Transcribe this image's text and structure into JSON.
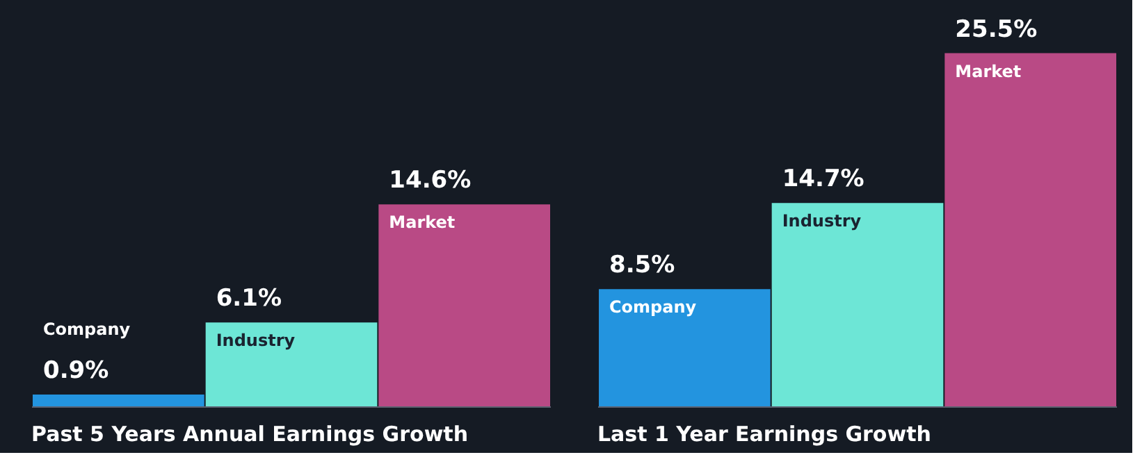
{
  "chart_data": [
    {
      "type": "bar",
      "title": "Past 5 Years Annual Earnings Growth",
      "categories": [
        "Company",
        "Industry",
        "Market"
      ],
      "values": [
        0.9,
        6.1,
        14.6
      ],
      "colors": [
        "#2394df",
        "#6de6d6",
        "#b94a85"
      ],
      "value_labels": [
        "0.9%",
        "6.1%",
        "14.6%"
      ]
    },
    {
      "type": "bar",
      "title": "Last 1 Year Earnings Growth",
      "categories": [
        "Company",
        "Industry",
        "Market"
      ],
      "values": [
        8.5,
        14.7,
        25.5
      ],
      "colors": [
        "#2394df",
        "#6de6d6",
        "#b94a85"
      ],
      "value_labels": [
        "8.5%",
        "14.7%",
        "25.5%"
      ]
    }
  ]
}
